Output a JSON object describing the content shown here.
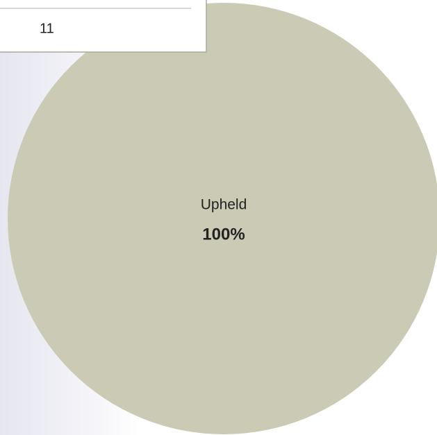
{
  "chart_data": {
    "type": "pie",
    "categories": [
      "Upheld"
    ],
    "values": [
      100
    ],
    "value_labels": [
      "100%"
    ],
    "colors": [
      "#cbcbb5"
    ]
  },
  "table": {
    "rows": [
      [
        "11"
      ]
    ]
  }
}
